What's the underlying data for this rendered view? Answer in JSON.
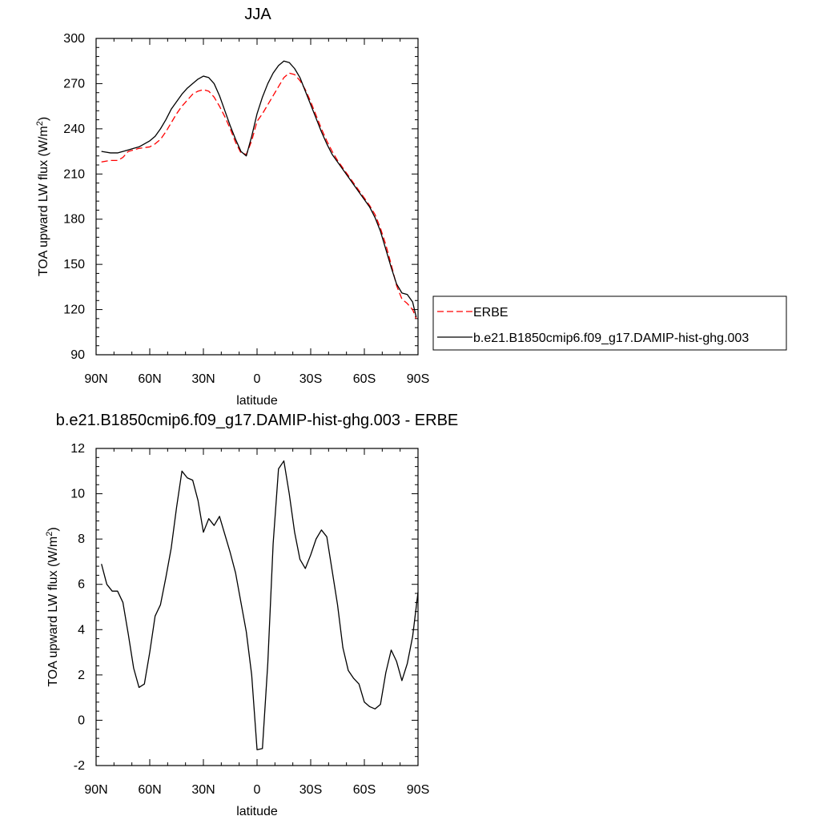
{
  "chart_data": [
    {
      "type": "line",
      "title": "JJA",
      "xlabel": "latitude",
      "ylabel": "TOA upward LW flux (W/m",
      "ylabel_sup": "2",
      "ylabel_close": ")",
      "xlim": [
        90,
        -90
      ],
      "ylim": [
        90,
        300
      ],
      "xticks": [
        {
          "value": 90,
          "label": "90N"
        },
        {
          "value": 60,
          "label": "60N"
        },
        {
          "value": 30,
          "label": "30N"
        },
        {
          "value": 0,
          "label": "0"
        },
        {
          "value": -30,
          "label": "30S"
        },
        {
          "value": -60,
          "label": "60S"
        },
        {
          "value": -90,
          "label": "90S"
        }
      ],
      "yticks": [
        90,
        120,
        150,
        180,
        210,
        240,
        270,
        300
      ],
      "legend_position": "right",
      "series": [
        {
          "name": "ERBE",
          "color": "#ff0000",
          "dash": "dashed",
          "points": [
            [
              87,
              218
            ],
            [
              82,
              219
            ],
            [
              78,
              219
            ],
            [
              75,
              221
            ],
            [
              72,
              225
            ],
            [
              69,
              226
            ],
            [
              66,
              227
            ],
            [
              60,
              228
            ],
            [
              57,
              230
            ],
            [
              54,
              233
            ],
            [
              51,
              238
            ],
            [
              48,
              244
            ],
            [
              45,
              250
            ],
            [
              42,
              255
            ],
            [
              39,
              259
            ],
            [
              36,
              263
            ],
            [
              33,
              265
            ],
            [
              30,
              266
            ],
            [
              27,
              265
            ],
            [
              24,
              261
            ],
            [
              21,
              255
            ],
            [
              18,
              248
            ],
            [
              15,
              240
            ],
            [
              12,
              231
            ],
            [
              9,
              224
            ],
            [
              6,
              223
            ],
            [
              3,
              232
            ],
            [
              0,
              245
            ],
            [
              -3,
              250
            ],
            [
              -6,
              256
            ],
            [
              -9,
              262
            ],
            [
              -12,
              268
            ],
            [
              -15,
              274
            ],
            [
              -18,
              277
            ],
            [
              -21,
              276
            ],
            [
              -24,
              272
            ],
            [
              -27,
              266
            ],
            [
              -30,
              258
            ],
            [
              -33,
              249
            ],
            [
              -36,
              240
            ],
            [
              -39,
              232
            ],
            [
              -42,
              225
            ],
            [
              -45,
              219
            ],
            [
              -48,
              214
            ],
            [
              -51,
              209
            ],
            [
              -54,
              204
            ],
            [
              -57,
              199
            ],
            [
              -60,
              194
            ],
            [
              -63,
              189
            ],
            [
              -66,
              183
            ],
            [
              -69,
              174
            ],
            [
              -72,
              163
            ],
            [
              -75,
              150
            ],
            [
              -78,
              136
            ],
            [
              -81,
              127
            ],
            [
              -84,
              124
            ],
            [
              -87,
              120
            ],
            [
              -89,
              114
            ]
          ]
        },
        {
          "name": "b.e21.B1850cmip6.f09_g17.DAMIP-hist-ghg.003",
          "color": "#000000",
          "dash": "solid",
          "points": [
            [
              87,
              225
            ],
            [
              82,
              224
            ],
            [
              78,
              224
            ],
            [
              75,
              225
            ],
            [
              72,
              226
            ],
            [
              69,
              227
            ],
            [
              66,
              228
            ],
            [
              63,
              230
            ],
            [
              60,
              232
            ],
            [
              57,
              235
            ],
            [
              54,
              240
            ],
            [
              51,
              246
            ],
            [
              48,
              253
            ],
            [
              45,
              258
            ],
            [
              42,
              263
            ],
            [
              39,
              267
            ],
            [
              36,
              270
            ],
            [
              33,
              273
            ],
            [
              30,
              275
            ],
            [
              27,
              274
            ],
            [
              24,
              270
            ],
            [
              21,
              262
            ],
            [
              18,
              252
            ],
            [
              15,
              242
            ],
            [
              12,
              233
            ],
            [
              9,
              225
            ],
            [
              6,
              222
            ],
            [
              3,
              235
            ],
            [
              0,
              250
            ],
            [
              -3,
              261
            ],
            [
              -6,
              270
            ],
            [
              -9,
              277
            ],
            [
              -12,
              282
            ],
            [
              -15,
              285
            ],
            [
              -18,
              284
            ],
            [
              -21,
              280
            ],
            [
              -24,
              274
            ],
            [
              -27,
              265
            ],
            [
              -30,
              256
            ],
            [
              -33,
              247
            ],
            [
              -36,
              238
            ],
            [
              -39,
              230
            ],
            [
              -42,
              223
            ],
            [
              -45,
              218
            ],
            [
              -48,
              213
            ],
            [
              -51,
              208
            ],
            [
              -54,
              203
            ],
            [
              -57,
              198
            ],
            [
              -60,
              193
            ],
            [
              -63,
              188
            ],
            [
              -66,
              181
            ],
            [
              -69,
              172
            ],
            [
              -72,
              160
            ],
            [
              -75,
              148
            ],
            [
              -78,
              137
            ],
            [
              -81,
              131
            ],
            [
              -84,
              130
            ],
            [
              -87,
              125
            ],
            [
              -89,
              115
            ]
          ]
        }
      ]
    },
    {
      "type": "line",
      "title": "b.e21.B1850cmip6.f09_g17.DAMIP-hist-ghg.003 - ERBE",
      "xlabel": "latitude",
      "ylabel": "TOA upward LW flux (W/m",
      "ylabel_sup": "2",
      "ylabel_close": ")",
      "xlim": [
        90,
        -90
      ],
      "ylim": [
        -2,
        12
      ],
      "xticks": [
        {
          "value": 90,
          "label": "90N"
        },
        {
          "value": 60,
          "label": "60N"
        },
        {
          "value": 30,
          "label": "30N"
        },
        {
          "value": 0,
          "label": "0"
        },
        {
          "value": -30,
          "label": "30S"
        },
        {
          "value": -60,
          "label": "60S"
        },
        {
          "value": -90,
          "label": "90S"
        }
      ],
      "yticks": [
        -2,
        0,
        2,
        4,
        6,
        8,
        10,
        12
      ],
      "series": [
        {
          "color": "#000000",
          "dash": "solid",
          "points": [
            [
              87,
              6.9
            ],
            [
              84,
              6.0
            ],
            [
              81,
              5.7
            ],
            [
              78,
              5.7
            ],
            [
              75,
              5.2
            ],
            [
              72,
              3.8
            ],
            [
              69,
              2.3
            ],
            [
              66,
              1.45
            ],
            [
              63,
              1.6
            ],
            [
              60,
              3.0
            ],
            [
              57,
              4.6
            ],
            [
              54,
              5.1
            ],
            [
              51,
              6.3
            ],
            [
              48,
              7.6
            ],
            [
              45,
              9.4
            ],
            [
              42,
              11.0
            ],
            [
              39,
              10.7
            ],
            [
              36,
              10.6
            ],
            [
              33,
              9.7
            ],
            [
              30,
              8.3
            ],
            [
              27,
              8.9
            ],
            [
              24,
              8.6
            ],
            [
              21,
              9.0
            ],
            [
              18,
              8.2
            ],
            [
              15,
              7.4
            ],
            [
              12,
              6.5
            ],
            [
              9,
              5.2
            ],
            [
              6,
              3.9
            ],
            [
              3,
              2.0
            ],
            [
              0,
              -1.3
            ],
            [
              -3,
              -1.25
            ],
            [
              -6,
              2.5
            ],
            [
              -9,
              7.8
            ],
            [
              -12,
              11.1
            ],
            [
              -15,
              11.45
            ],
            [
              -18,
              10.0
            ],
            [
              -21,
              8.3
            ],
            [
              -24,
              7.1
            ],
            [
              -27,
              6.7
            ],
            [
              -30,
              7.3
            ],
            [
              -33,
              8.0
            ],
            [
              -36,
              8.4
            ],
            [
              -39,
              8.1
            ],
            [
              -42,
              6.6
            ],
            [
              -45,
              5.1
            ],
            [
              -48,
              3.2
            ],
            [
              -51,
              2.2
            ],
            [
              -54,
              1.85
            ],
            [
              -57,
              1.6
            ],
            [
              -60,
              0.8
            ],
            [
              -63,
              0.6
            ],
            [
              -66,
              0.5
            ],
            [
              -69,
              0.7
            ],
            [
              -72,
              2.1
            ],
            [
              -75,
              3.1
            ],
            [
              -78,
              2.6
            ],
            [
              -81,
              1.75
            ],
            [
              -84,
              2.5
            ],
            [
              -87,
              3.7
            ],
            [
              -90,
              5.65
            ]
          ]
        }
      ]
    }
  ]
}
